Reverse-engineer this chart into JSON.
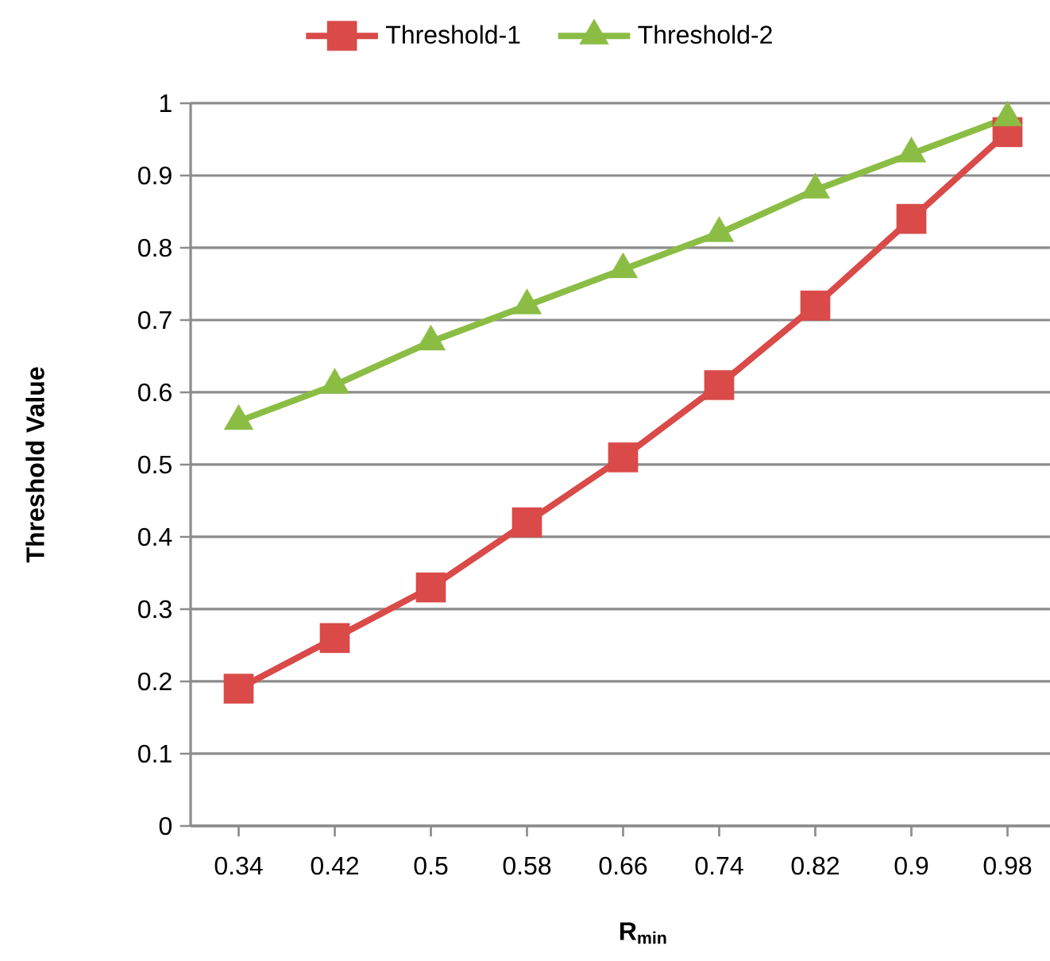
{
  "chart_data": {
    "type": "line",
    "xlabel": "R$_{min}$",
    "ylabel": "Threshold Value",
    "categories": [
      "0.34",
      "0.42",
      "0.5",
      "0.58",
      "0.66",
      "0.74",
      "0.82",
      "0.9",
      "0.98"
    ],
    "series": [
      {
        "name": "Threshold-1",
        "color": "#d94a48",
        "marker": "square",
        "values": [
          0.19,
          0.26,
          0.33,
          0.42,
          0.51,
          0.61,
          0.72,
          0.84,
          0.96
        ]
      },
      {
        "name": "Threshold-2",
        "color": "#8bbd45",
        "marker": "triangle",
        "values": [
          0.56,
          0.61,
          0.67,
          0.72,
          0.77,
          0.82,
          0.88,
          0.93,
          0.98
        ]
      }
    ],
    "ylim": [
      0,
      1
    ],
    "yticks": [
      0,
      0.1,
      0.2,
      0.3,
      0.4,
      0.5,
      0.6,
      0.7,
      0.8,
      0.9,
      1
    ],
    "grid": "y",
    "legend": "top",
    "line_style": "solid"
  }
}
